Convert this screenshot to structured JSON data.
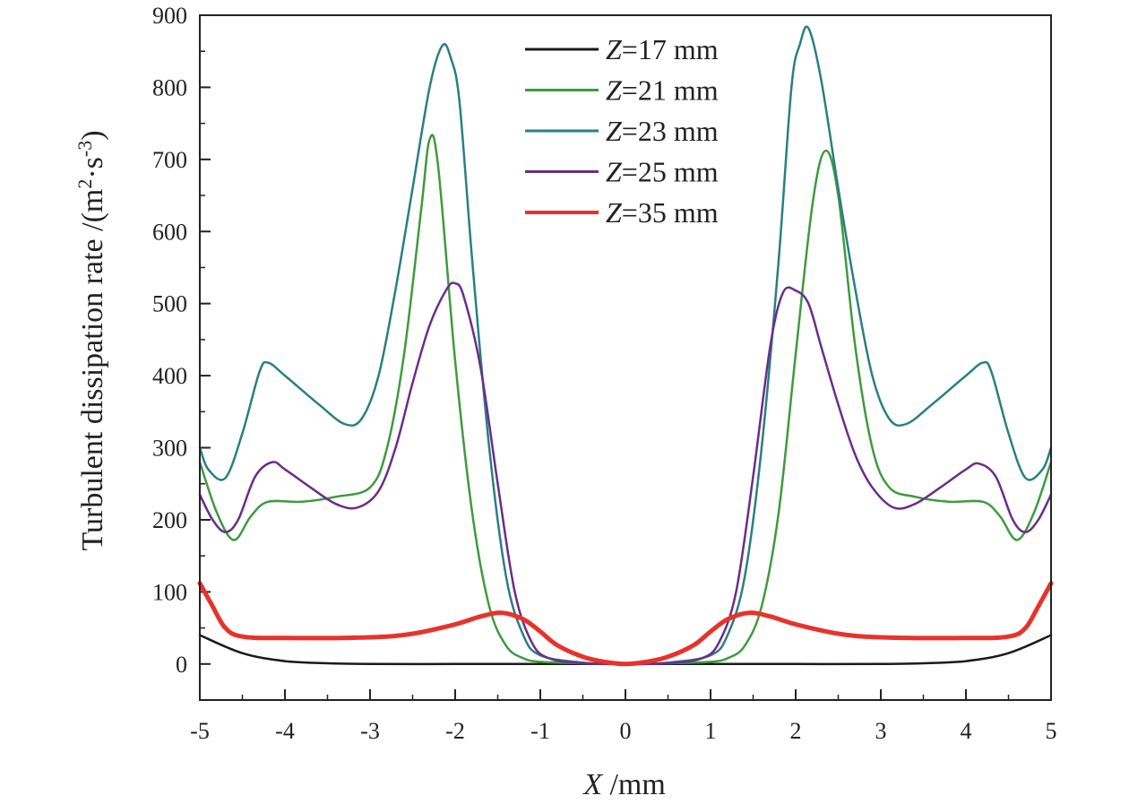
{
  "chart_data": {
    "type": "line",
    "xlabel_italic": "X",
    "xlabel_unit": " /mm",
    "ylabel": "Turbulent dissipation rate /(m",
    "ylabel_sup1": "2",
    "ylabel_mid": "·s",
    "ylabel_sup2": "-3",
    "ylabel_end": ")",
    "xlim": [
      -5,
      5
    ],
    "ylim": [
      -50,
      900
    ],
    "xticks": [
      -5,
      -4,
      -3,
      -2,
      -1,
      0,
      1,
      2,
      3,
      4,
      5
    ],
    "xtick_labels": [
      "-5",
      "-4",
      "-3",
      "-2",
      "-1",
      "0",
      "1",
      "2",
      "3",
      "4",
      "5"
    ],
    "yticks": [
      0,
      100,
      200,
      300,
      400,
      500,
      600,
      700,
      800,
      900
    ],
    "ytick_labels": [
      "0",
      "100",
      "200",
      "300",
      "400",
      "500",
      "600",
      "700",
      "800",
      "900"
    ],
    "legend_position": "top-center",
    "series": [
      {
        "name_italic": "Z",
        "name_rest": "=17 mm",
        "color": "#1a1a1a",
        "x": [
          -5,
          -4.5,
          -4,
          -3.5,
          -3,
          -2,
          -1,
          0,
          1,
          2,
          3,
          3.5,
          4,
          4.5,
          5
        ],
        "y": [
          40,
          15,
          4,
          1,
          0,
          0,
          0,
          0,
          0,
          0,
          0,
          1,
          4,
          15,
          40
        ]
      },
      {
        "name_italic": "Z",
        "name_rest": "=21 mm",
        "color": "#3f9a3f",
        "x": [
          -5,
          -4.8,
          -4.6,
          -4.4,
          -4.2,
          -3.8,
          -3.4,
          -3,
          -2.8,
          -2.6,
          -2.4,
          -2.3,
          -2.2,
          -2,
          -1.8,
          -1.6,
          -1.4,
          -1.2,
          -1,
          -0.5,
          0,
          0.5,
          1,
          1.2,
          1.4,
          1.6,
          1.8,
          2,
          2.2,
          2.35,
          2.5,
          2.7,
          2.9,
          3.1,
          3.4,
          3.8,
          4.2,
          4.4,
          4.6,
          4.8,
          5
        ],
        "y": [
          280,
          210,
          172,
          205,
          225,
          225,
          232,
          245,
          300,
          430,
          630,
          728,
          690,
          420,
          210,
          80,
          25,
          8,
          3,
          1,
          0,
          1,
          3,
          8,
          25,
          80,
          210,
          430,
          640,
          712,
          650,
          440,
          300,
          245,
          232,
          225,
          225,
          205,
          172,
          210,
          280
        ]
      },
      {
        "name_italic": "Z",
        "name_rest": "=23 mm",
        "color": "#2a7f82",
        "x": [
          -5,
          -4.9,
          -4.7,
          -4.5,
          -4.3,
          -4.2,
          -4,
          -3.6,
          -3.3,
          -3.1,
          -2.9,
          -2.7,
          -2.5,
          -2.3,
          -2.15,
          -2.05,
          -1.95,
          -1.8,
          -1.6,
          -1.4,
          -1.2,
          -1,
          -0.5,
          0,
          0.5,
          1,
          1.2,
          1.4,
          1.6,
          1.8,
          1.95,
          2.05,
          2.15,
          2.3,
          2.5,
          2.7,
          2.9,
          3.1,
          3.3,
          3.6,
          4,
          4.2,
          4.3,
          4.5,
          4.7,
          4.9,
          5
        ],
        "y": [
          300,
          270,
          258,
          320,
          405,
          418,
          400,
          360,
          333,
          340,
          400,
          520,
          660,
          800,
          858,
          840,
          780,
          560,
          300,
          120,
          40,
          12,
          2,
          0,
          2,
          12,
          40,
          120,
          300,
          560,
          800,
          860,
          882,
          810,
          660,
          520,
          400,
          340,
          333,
          360,
          400,
          418,
          405,
          320,
          258,
          270,
          300
        ]
      },
      {
        "name_italic": "Z",
        "name_rest": "=25 mm",
        "color": "#6a2e8a",
        "x": [
          -5,
          -4.85,
          -4.7,
          -4.55,
          -4.35,
          -4.15,
          -4,
          -3.7,
          -3.4,
          -3.15,
          -2.9,
          -2.7,
          -2.5,
          -2.3,
          -2.1,
          -2,
          -1.9,
          -1.7,
          -1.5,
          -1.3,
          -1.1,
          -0.9,
          -0.5,
          0,
          0.5,
          0.9,
          1.1,
          1.3,
          1.5,
          1.7,
          1.85,
          2,
          2.15,
          2.3,
          2.5,
          2.7,
          2.9,
          3.15,
          3.4,
          3.7,
          4,
          4.15,
          4.35,
          4.55,
          4.7,
          4.85,
          5
        ],
        "y": [
          235,
          200,
          183,
          200,
          260,
          280,
          270,
          245,
          222,
          217,
          240,
          300,
          390,
          470,
          520,
          528,
          510,
          410,
          250,
          100,
          30,
          8,
          1,
          0,
          1,
          8,
          30,
          100,
          260,
          440,
          515,
          518,
          500,
          440,
          360,
          290,
          245,
          217,
          222,
          245,
          270,
          278,
          260,
          200,
          183,
          200,
          235
        ]
      },
      {
        "name_italic": "Z",
        "name_rest": "=35 mm",
        "color": "#e8322a",
        "x": [
          -5,
          -4.85,
          -4.7,
          -4.5,
          -4,
          -3,
          -2.5,
          -2,
          -1.7,
          -1.45,
          -1.2,
          -1,
          -0.8,
          -0.5,
          -0.25,
          0,
          0.25,
          0.5,
          0.8,
          1,
          1.2,
          1.45,
          1.7,
          2,
          2.5,
          3,
          4,
          4.5,
          4.7,
          4.85,
          5
        ],
        "y": [
          112,
          80,
          50,
          38,
          36,
          37,
          42,
          55,
          66,
          71,
          62,
          45,
          26,
          10,
          3,
          0,
          3,
          10,
          26,
          45,
          62,
          71,
          66,
          55,
          42,
          37,
          36,
          38,
          50,
          80,
          112
        ]
      }
    ]
  }
}
